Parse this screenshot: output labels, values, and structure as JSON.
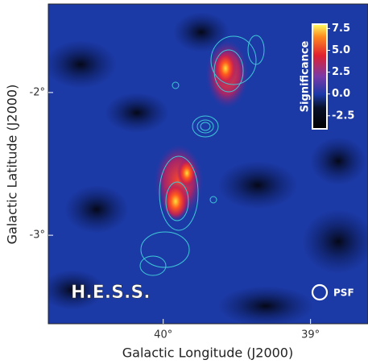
{
  "chart_data": {
    "type": "heatmap",
    "xlabel": "Galactic Longitude (J2000)",
    "ylabel": "Galactic Latitude (J2000)",
    "xlim": [
      40.78,
      38.61
    ],
    "xticks": [
      {
        "value": 40,
        "label": "40°"
      },
      {
        "value": 39,
        "label": "39°"
      }
    ],
    "ylim": [
      -3.62,
      -1.38
    ],
    "yticks": [
      {
        "value": -2,
        "label": "-2°"
      },
      {
        "value": -3,
        "label": "-3°"
      }
    ],
    "colorbar": {
      "label": "Significance",
      "clim": [
        -4,
        8
      ],
      "ticks": [
        7.5,
        {
          "value": 5,
          "label": "5.0"
        },
        2.5,
        {
          "value": 0,
          "label": "0.0"
        },
        -2.5
      ]
    },
    "annotations": [
      "H.E.S.S.",
      "PSF"
    ]
  }
}
